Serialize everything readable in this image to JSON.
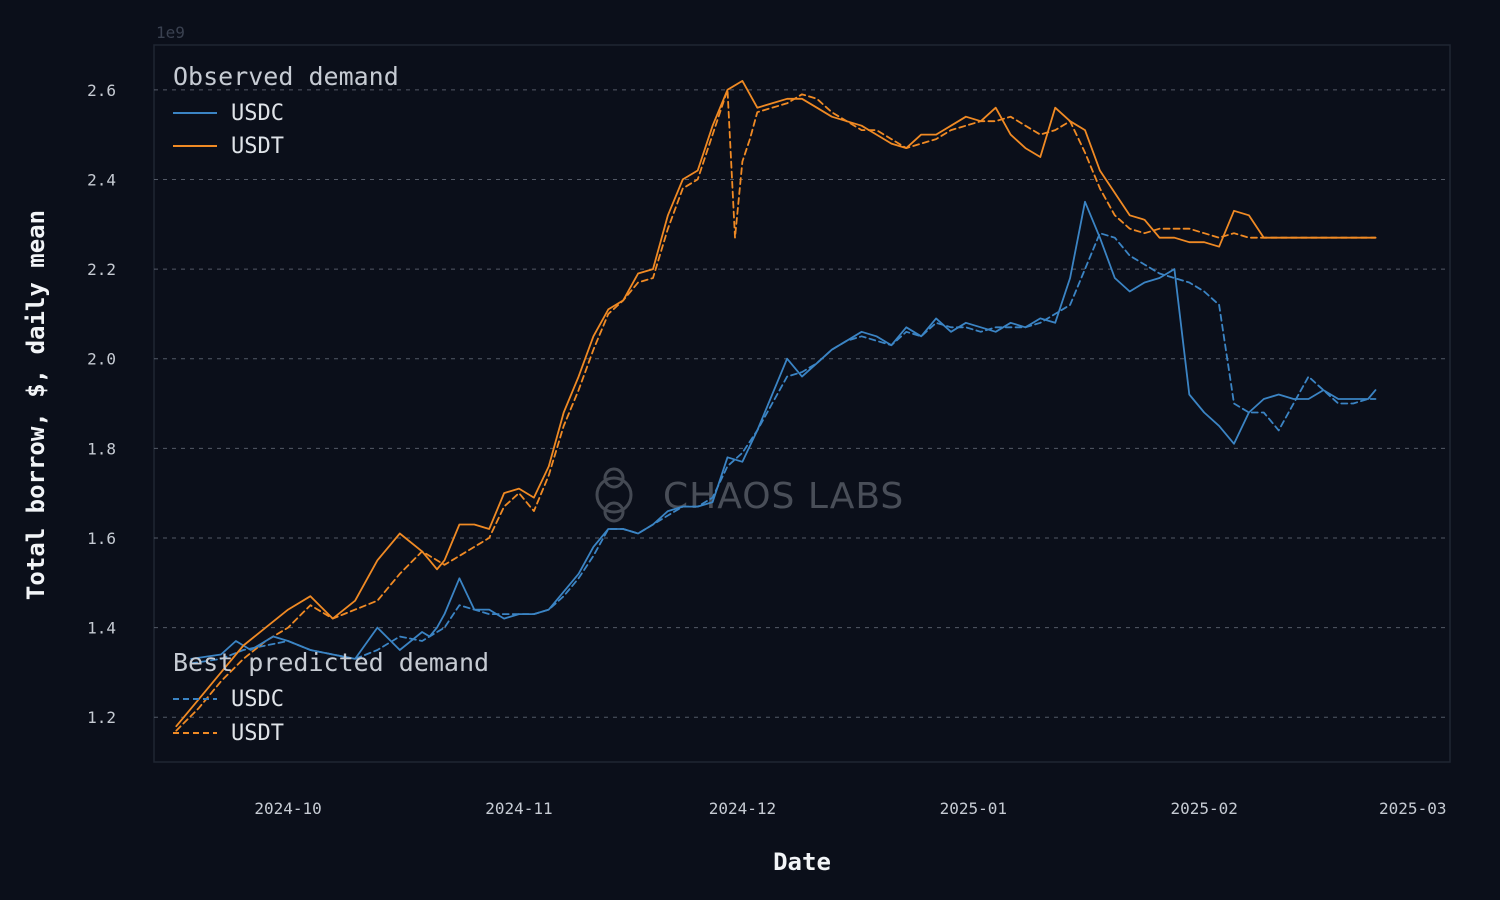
{
  "chart_data": {
    "type": "line",
    "xlabel": "Date",
    "ylabel": "Total borrow, $, daily mean",
    "y_scale_label": "1e9",
    "watermark": "CHAOS LABS",
    "ylim": [
      1.1,
      2.7
    ],
    "xlim": [
      "2024-09-13",
      "2025-03-06"
    ],
    "x_ticks": [
      "2024-10",
      "2024-11",
      "2024-12",
      "2025-01",
      "2025-02",
      "2025-03"
    ],
    "y_ticks": [
      "1.2",
      "1.4",
      "1.6",
      "1.8",
      "2.0",
      "2.2",
      "2.4",
      "2.6"
    ],
    "y_tick_values": [
      1.2,
      1.4,
      1.6,
      1.8,
      2.0,
      2.2,
      2.4,
      2.6
    ],
    "legend_groups": [
      {
        "title": "Observed demand",
        "entries": [
          "USDC",
          "USDT"
        ]
      },
      {
        "title": "Best predicted demand",
        "entries": [
          "USDC",
          "USDT"
        ]
      }
    ],
    "colors": {
      "usdc": "#3b84c4",
      "usdt": "#f08a24",
      "grid": "#6b7280",
      "frame": "#1f2633"
    },
    "series": [
      {
        "name": "USDC",
        "group": "Observed demand",
        "style": "solid",
        "color_key": "usdc",
        "x": [
          "2024-09-18",
          "2024-09-22",
          "2024-09-24",
          "2024-09-26",
          "2024-09-29",
          "2024-10-01",
          "2024-10-04",
          "2024-10-07",
          "2024-10-10",
          "2024-10-13",
          "2024-10-16",
          "2024-10-19",
          "2024-10-20",
          "2024-10-21",
          "2024-10-22",
          "2024-10-24",
          "2024-10-26",
          "2024-10-27",
          "2024-10-28",
          "2024-10-29",
          "2024-10-30",
          "2024-11-01",
          "2024-11-03",
          "2024-11-05",
          "2024-11-07",
          "2024-11-09",
          "2024-11-11",
          "2024-11-13",
          "2024-11-15",
          "2024-11-17",
          "2024-11-19",
          "2024-11-21",
          "2024-11-23",
          "2024-11-25",
          "2024-11-27",
          "2024-11-29",
          "2024-12-01",
          "2024-12-03",
          "2024-12-05",
          "2024-12-07",
          "2024-12-09",
          "2024-12-11",
          "2024-12-13",
          "2024-12-15",
          "2024-12-17",
          "2024-12-19",
          "2024-12-21",
          "2024-12-23",
          "2024-12-25",
          "2024-12-27",
          "2024-12-29",
          "2024-12-31",
          "2025-01-02",
          "2025-01-04",
          "2025-01-06",
          "2025-01-08",
          "2025-01-10",
          "2025-01-12",
          "2025-01-14",
          "2025-01-16",
          "2025-01-18",
          "2025-01-20",
          "2025-01-22",
          "2025-01-24",
          "2025-01-26",
          "2025-01-28",
          "2025-01-30",
          "2025-02-01",
          "2025-02-03",
          "2025-02-05",
          "2025-02-07",
          "2025-02-09",
          "2025-02-11",
          "2025-02-13",
          "2025-02-15",
          "2025-02-17",
          "2025-02-19",
          "2025-02-21",
          "2025-02-23",
          "2025-02-24"
        ],
        "values": [
          1.33,
          1.34,
          1.37,
          1.35,
          1.38,
          1.37,
          1.35,
          1.34,
          1.33,
          1.4,
          1.35,
          1.39,
          1.38,
          1.4,
          1.43,
          1.51,
          1.44,
          1.44,
          1.44,
          1.43,
          1.42,
          1.43,
          1.43,
          1.44,
          1.48,
          1.52,
          1.58,
          1.62,
          1.62,
          1.61,
          1.63,
          1.66,
          1.67,
          1.67,
          1.68,
          1.78,
          1.77,
          1.84,
          1.92,
          2.0,
          1.96,
          1.99,
          2.02,
          2.04,
          2.06,
          2.05,
          2.03,
          2.07,
          2.05,
          2.09,
          2.06,
          2.08,
          2.07,
          2.06,
          2.08,
          2.07,
          2.09,
          2.08,
          2.18,
          2.35,
          2.27,
          2.18,
          2.15,
          2.17,
          2.18,
          2.2,
          1.92,
          1.88,
          1.85,
          1.81,
          1.88,
          1.91,
          1.92,
          1.91,
          1.91,
          1.93,
          1.91,
          1.91,
          1.91,
          1.93
        ]
      },
      {
        "name": "USDT",
        "group": "Observed demand",
        "style": "solid",
        "color_key": "usdt",
        "x": [
          "2024-09-16",
          "2024-09-19",
          "2024-09-22",
          "2024-09-25",
          "2024-09-28",
          "2024-10-01",
          "2024-10-04",
          "2024-10-07",
          "2024-10-10",
          "2024-10-13",
          "2024-10-16",
          "2024-10-19",
          "2024-10-20",
          "2024-10-21",
          "2024-10-22",
          "2024-10-24",
          "2024-10-26",
          "2024-10-28",
          "2024-10-30",
          "2024-11-01",
          "2024-11-03",
          "2024-11-05",
          "2024-11-07",
          "2024-11-09",
          "2024-11-11",
          "2024-11-13",
          "2024-11-15",
          "2024-11-17",
          "2024-11-19",
          "2024-11-21",
          "2024-11-23",
          "2024-11-25",
          "2024-11-27",
          "2024-11-29",
          "2024-12-01",
          "2024-12-03",
          "2024-12-05",
          "2024-12-07",
          "2024-12-09",
          "2024-12-11",
          "2024-12-13",
          "2024-12-15",
          "2024-12-17",
          "2024-12-19",
          "2024-12-21",
          "2024-12-23",
          "2024-12-25",
          "2024-12-27",
          "2024-12-29",
          "2024-12-31",
          "2025-01-02",
          "2025-01-04",
          "2025-01-06",
          "2025-01-08",
          "2025-01-10",
          "2025-01-12",
          "2025-01-14",
          "2025-01-16",
          "2025-01-18",
          "2025-01-20",
          "2025-01-22",
          "2025-01-24",
          "2025-01-26",
          "2025-01-28",
          "2025-01-30",
          "2025-02-01",
          "2025-02-03",
          "2025-02-05",
          "2025-02-07",
          "2025-02-09",
          "2025-02-11",
          "2025-02-13",
          "2025-02-15",
          "2025-02-17",
          "2025-02-19",
          "2025-02-21",
          "2025-02-22",
          "2025-02-23",
          "2025-02-24"
        ],
        "values": [
          1.18,
          1.24,
          1.3,
          1.36,
          1.4,
          1.44,
          1.47,
          1.42,
          1.46,
          1.55,
          1.61,
          1.57,
          1.55,
          1.53,
          1.55,
          1.63,
          1.63,
          1.62,
          1.7,
          1.71,
          1.69,
          1.76,
          1.88,
          1.96,
          2.05,
          2.11,
          2.13,
          2.19,
          2.2,
          2.32,
          2.4,
          2.42,
          2.52,
          2.6,
          2.62,
          2.56,
          2.57,
          2.58,
          2.58,
          2.56,
          2.54,
          2.53,
          2.52,
          2.5,
          2.48,
          2.47,
          2.5,
          2.5,
          2.52,
          2.54,
          2.53,
          2.56,
          2.5,
          2.47,
          2.45,
          2.56,
          2.53,
          2.51,
          2.42,
          2.37,
          2.32,
          2.31,
          2.27,
          2.27,
          2.26,
          2.26,
          2.25,
          2.33,
          2.32,
          2.27,
          2.27,
          2.27,
          2.27,
          2.27,
          2.27,
          2.27,
          2.27,
          2.27,
          2.27
        ]
      },
      {
        "name": "USDC",
        "group": "Best predicted demand",
        "style": "dashed",
        "color_key": "usdc",
        "x": [
          "2024-09-18",
          "2024-09-22",
          "2024-09-25",
          "2024-09-28",
          "2024-10-01",
          "2024-10-04",
          "2024-10-07",
          "2024-10-10",
          "2024-10-13",
          "2024-10-16",
          "2024-10-19",
          "2024-10-22",
          "2024-10-24",
          "2024-10-26",
          "2024-10-28",
          "2024-10-30",
          "2024-11-01",
          "2024-11-03",
          "2024-11-05",
          "2024-11-07",
          "2024-11-09",
          "2024-11-11",
          "2024-11-13",
          "2024-11-15",
          "2024-11-17",
          "2024-11-19",
          "2024-11-21",
          "2024-11-23",
          "2024-11-25",
          "2024-11-27",
          "2024-11-29",
          "2024-12-01",
          "2024-12-03",
          "2024-12-05",
          "2024-12-07",
          "2024-12-09",
          "2024-12-11",
          "2024-12-13",
          "2024-12-15",
          "2024-12-17",
          "2024-12-19",
          "2024-12-21",
          "2024-12-23",
          "2024-12-25",
          "2024-12-27",
          "2024-12-29",
          "2024-12-31",
          "2025-01-02",
          "2025-01-04",
          "2025-01-06",
          "2025-01-08",
          "2025-01-10",
          "2025-01-12",
          "2025-01-14",
          "2025-01-16",
          "2025-01-18",
          "2025-01-20",
          "2025-01-22",
          "2025-01-24",
          "2025-01-26",
          "2025-01-28",
          "2025-01-30",
          "2025-02-01",
          "2025-02-03",
          "2025-02-05",
          "2025-02-07",
          "2025-02-09",
          "2025-02-11",
          "2025-02-13",
          "2025-02-15",
          "2025-02-17",
          "2025-02-19",
          "2025-02-21",
          "2025-02-23",
          "2025-02-24"
        ],
        "values": [
          1.32,
          1.33,
          1.35,
          1.36,
          1.37,
          1.35,
          1.34,
          1.33,
          1.35,
          1.38,
          1.37,
          1.4,
          1.45,
          1.44,
          1.43,
          1.43,
          1.43,
          1.43,
          1.44,
          1.47,
          1.51,
          1.56,
          1.62,
          1.62,
          1.61,
          1.63,
          1.65,
          1.67,
          1.67,
          1.69,
          1.76,
          1.79,
          1.84,
          1.9,
          1.96,
          1.97,
          1.99,
          2.02,
          2.04,
          2.05,
          2.04,
          2.03,
          2.06,
          2.05,
          2.08,
          2.07,
          2.07,
          2.06,
          2.07,
          2.07,
          2.07,
          2.08,
          2.1,
          2.12,
          2.2,
          2.28,
          2.27,
          2.23,
          2.21,
          2.19,
          2.18,
          2.17,
          2.15,
          2.12,
          1.9,
          1.88,
          1.88,
          1.84,
          1.9,
          1.96,
          1.93,
          1.9,
          1.9,
          1.91,
          1.91
        ]
      },
      {
        "name": "USDT",
        "group": "Best predicted demand",
        "style": "dashed",
        "color_key": "usdt",
        "x": [
          "2024-09-16",
          "2024-09-19",
          "2024-09-22",
          "2024-09-25",
          "2024-09-28",
          "2024-10-01",
          "2024-10-04",
          "2024-10-07",
          "2024-10-10",
          "2024-10-13",
          "2024-10-16",
          "2024-10-19",
          "2024-10-22",
          "2024-10-24",
          "2024-10-26",
          "2024-10-28",
          "2024-10-30",
          "2024-11-01",
          "2024-11-03",
          "2024-11-05",
          "2024-11-07",
          "2024-11-09",
          "2024-11-11",
          "2024-11-13",
          "2024-11-15",
          "2024-11-17",
          "2024-11-19",
          "2024-11-21",
          "2024-11-23",
          "2024-11-25",
          "2024-11-27",
          "2024-11-29",
          "2024-11-30",
          "2024-12-01",
          "2024-12-02",
          "2024-12-03",
          "2024-12-05",
          "2024-12-07",
          "2024-12-09",
          "2024-12-11",
          "2024-12-13",
          "2024-12-15",
          "2024-12-17",
          "2024-12-19",
          "2024-12-21",
          "2024-12-23",
          "2024-12-25",
          "2024-12-27",
          "2024-12-29",
          "2024-12-31",
          "2025-01-02",
          "2025-01-04",
          "2025-01-06",
          "2025-01-08",
          "2025-01-10",
          "2025-01-12",
          "2025-01-14",
          "2025-01-16",
          "2025-01-18",
          "2025-01-20",
          "2025-01-22",
          "2025-01-24",
          "2025-01-26",
          "2025-01-28",
          "2025-01-30",
          "2025-02-01",
          "2025-02-03",
          "2025-02-05",
          "2025-02-07",
          "2025-02-09",
          "2025-02-11",
          "2025-02-13",
          "2025-02-15",
          "2025-02-17",
          "2025-02-19",
          "2025-02-21",
          "2025-02-23",
          "2025-02-24"
        ],
        "values": [
          1.17,
          1.22,
          1.28,
          1.33,
          1.37,
          1.4,
          1.45,
          1.42,
          1.44,
          1.46,
          1.52,
          1.57,
          1.54,
          1.56,
          1.58,
          1.6,
          1.67,
          1.7,
          1.66,
          1.74,
          1.85,
          1.93,
          2.02,
          2.1,
          2.13,
          2.17,
          2.18,
          2.29,
          2.38,
          2.4,
          2.5,
          2.6,
          2.27,
          2.44,
          2.49,
          2.55,
          2.56,
          2.57,
          2.59,
          2.58,
          2.55,
          2.53,
          2.51,
          2.51,
          2.49,
          2.47,
          2.48,
          2.49,
          2.51,
          2.52,
          2.53,
          2.53,
          2.54,
          2.52,
          2.5,
          2.51,
          2.53,
          2.46,
          2.38,
          2.32,
          2.29,
          2.28,
          2.29,
          2.29,
          2.29,
          2.28,
          2.27,
          2.28,
          2.27,
          2.27,
          2.27,
          2.27,
          2.27,
          2.27,
          2.27,
          2.27,
          2.27,
          2.27
        ]
      }
    ]
  }
}
